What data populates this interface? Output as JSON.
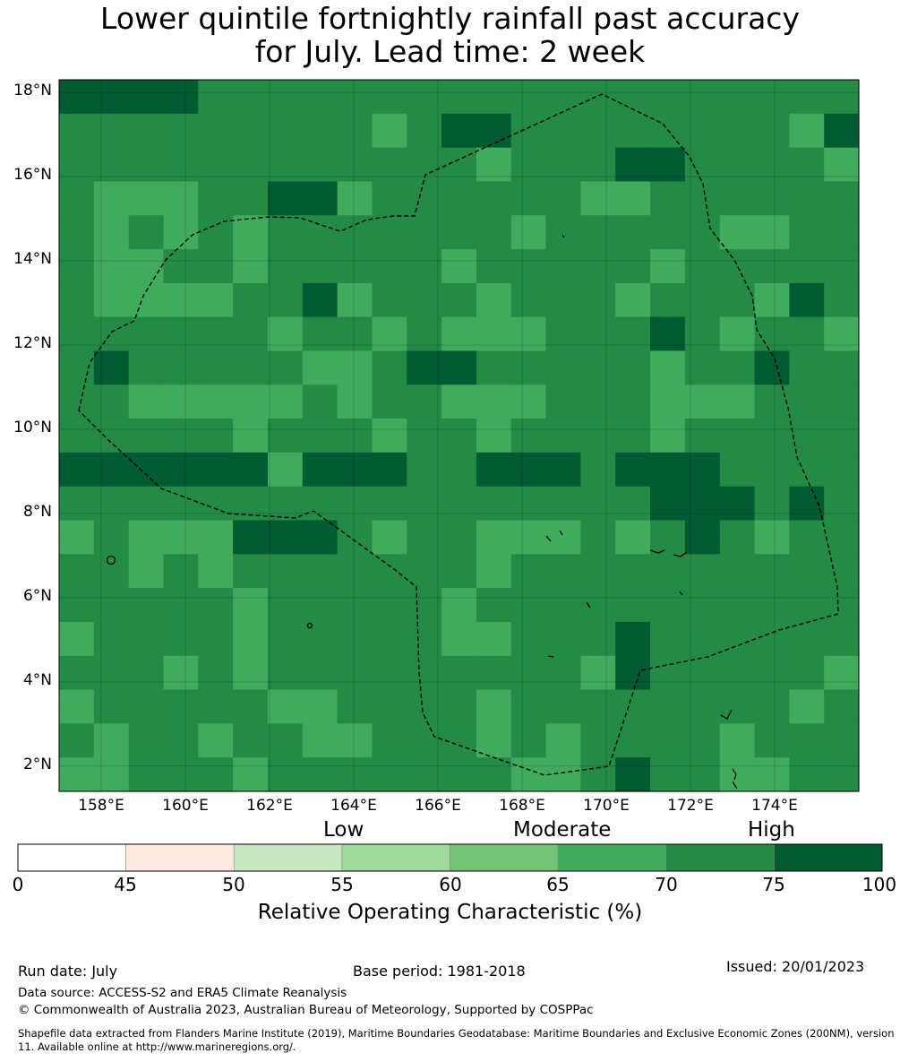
{
  "title": {
    "line1": "Lower quintile fortnightly rainfall past accuracy",
    "line2": "for July. Lead time: 2 week"
  },
  "map": {
    "lat_ticks": [
      "18°N",
      "16°N",
      "14°N",
      "12°N",
      "10°N",
      "8°N",
      "6°N",
      "4°N",
      "2°N"
    ],
    "lon_ticks": [
      "158°E",
      "160°E",
      "162°E",
      "164°E",
      "166°E",
      "168°E",
      "170°E",
      "172°E",
      "174°E"
    ],
    "lon_range": [
      157,
      176
    ],
    "lat_range": [
      1.4,
      18.3
    ],
    "grid_cols": 23,
    "grid_rows": 21,
    "grid_levels": [
      "77776666666666666666666",
      "66666666656776666666657",
      "66666666666656667766665",
      "65556677566666655666666",
      "65656566666665666665566",
      "65566566666566666566666",
      "65555667566656665666576",
      "66666656656555666765665",
      "67666665567766666566766",
      "66555556566555666555666",
      "66666566656656666566666",
      "77777757776677767776666",
      "66666666666666666777676",
      "56555777656655565676566",
      "66565666666656666666666",
      "66666566666566666666666",
      "56666566666556667666666",
      "66656566666666657666665",
      "56666655666656666666656",
      "65665665566656566665666",
      "55666566666665567665566"
    ],
    "colors": {
      "level_1": "#ffe9e0",
      "level_2": "#c7e8c0",
      "level_3": "#a1d99b",
      "level_4": "#74c477",
      "level_5": "#41ab5d",
      "level_6": "#238b45",
      "level_7": "#005a32"
    }
  },
  "legend": {
    "categories": [
      "Low",
      "Moderate",
      "High"
    ],
    "ticks": [
      "0",
      "45",
      "50",
      "55",
      "60",
      "65",
      "70",
      "75",
      "100"
    ],
    "colors": [
      "#ffffff",
      "#ffe9e0",
      "#c7e8c0",
      "#a1d99b",
      "#74c477",
      "#41ab5d",
      "#238b45",
      "#005a32"
    ],
    "title": "Relative Operating Characteristic (%)"
  },
  "footer": {
    "run_date": "Run date: July",
    "base_period": "Base period: 1981-2018",
    "issued": "Issued: 20/01/2023",
    "data_source": "Data source: ACCESS-S2 and ERA5 Climate Reanalysis",
    "copyright": "© Commonwealth of Australia 2023, Australian Bureau of Meteorology, Supported by COSPPac",
    "shapefile": "Shapefile data extracted from Flanders Marine Institute (2019), Maritime Boundaries Geodatabase: Maritime Boundaries and Exclusive Economic Zones (200NM), version 11. Available online at http://www.marineregions.org/."
  }
}
